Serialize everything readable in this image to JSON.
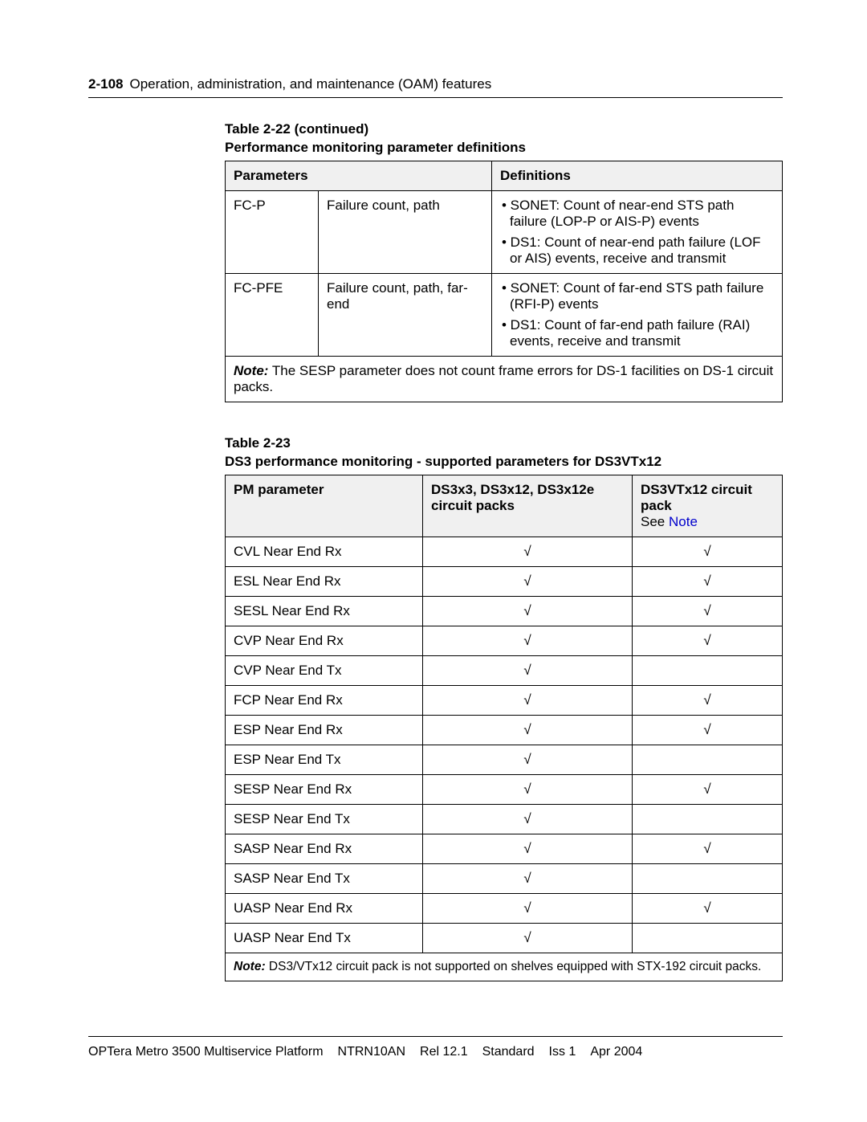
{
  "header": {
    "page_number": "2-108",
    "chapter_title": "Operation, administration, and maintenance (OAM) features"
  },
  "table1": {
    "caption_line1": "Table 2-22 (continued)",
    "caption_line2": "Performance monitoring parameter definitions",
    "col_headers": {
      "c1": "Parameters",
      "c2": "Definitions"
    },
    "rows": [
      {
        "code": "FC-P",
        "name": "Failure count, path",
        "defs": [
          "SONET: Count of near-end STS path failure (LOP-P or AIS-P) events",
          "DS1: Count of near-end path failure (LOF or AIS) events, receive and transmit"
        ]
      },
      {
        "code": "FC-PFE",
        "name": "Failure count, path, far-end",
        "defs": [
          "SONET: Count of far-end STS path failure (RFI-P) events",
          "DS1: Count of far-end path failure (RAI) events, receive and transmit"
        ]
      }
    ],
    "note_label": "Note:",
    "note_text": "  The SESP parameter does not count frame errors for DS-1 facilities on DS-1 circuit packs."
  },
  "table2": {
    "caption_line1": "Table 2-23",
    "caption_line2": "DS3 performance monitoring - supported parameters for DS3VTx12",
    "col_headers": {
      "c1": "PM parameter",
      "c2": "DS3x3, DS3x12, DS3x12e circuit packs",
      "c3_prefix": "DS3VTx12 circuit pack",
      "c3_line2_pre": "See ",
      "c3_link": "Note"
    },
    "check": "√",
    "rows": [
      {
        "p": "CVL Near End Rx",
        "a": true,
        "b": true
      },
      {
        "p": "ESL Near End Rx",
        "a": true,
        "b": true
      },
      {
        "p": "SESL Near End Rx",
        "a": true,
        "b": true
      },
      {
        "p": "CVP Near End Rx",
        "a": true,
        "b": true
      },
      {
        "p": "CVP Near End Tx",
        "a": true,
        "b": false
      },
      {
        "p": "FCP Near End Rx",
        "a": true,
        "b": true
      },
      {
        "p": "ESP Near End Rx",
        "a": true,
        "b": true
      },
      {
        "p": "ESP Near End Tx",
        "a": true,
        "b": false
      },
      {
        "p": "SESP Near End Rx",
        "a": true,
        "b": true
      },
      {
        "p": "SESP Near End Tx",
        "a": true,
        "b": false
      },
      {
        "p": "SASP Near End Rx",
        "a": true,
        "b": true
      },
      {
        "p": "SASP Near End Tx",
        "a": true,
        "b": false
      },
      {
        "p": "UASP Near End Rx",
        "a": true,
        "b": true
      },
      {
        "p": "UASP Near End Tx",
        "a": true,
        "b": false
      }
    ],
    "note_label": "Note:",
    "note_text": "  DS3/VTx12 circuit pack is not supported on shelves equipped with STX-192 circuit packs."
  },
  "footer": {
    "items": [
      "OPTera Metro 3500 Multiservice Platform",
      "NTRN10AN",
      "Rel 12.1",
      "Standard",
      "Iss 1",
      "Apr 2004"
    ]
  },
  "style": {
    "widths": {
      "t1c1": "95px",
      "t1c2": "195px",
      "t2c1": "225px",
      "t2c2": "240px"
    }
  }
}
